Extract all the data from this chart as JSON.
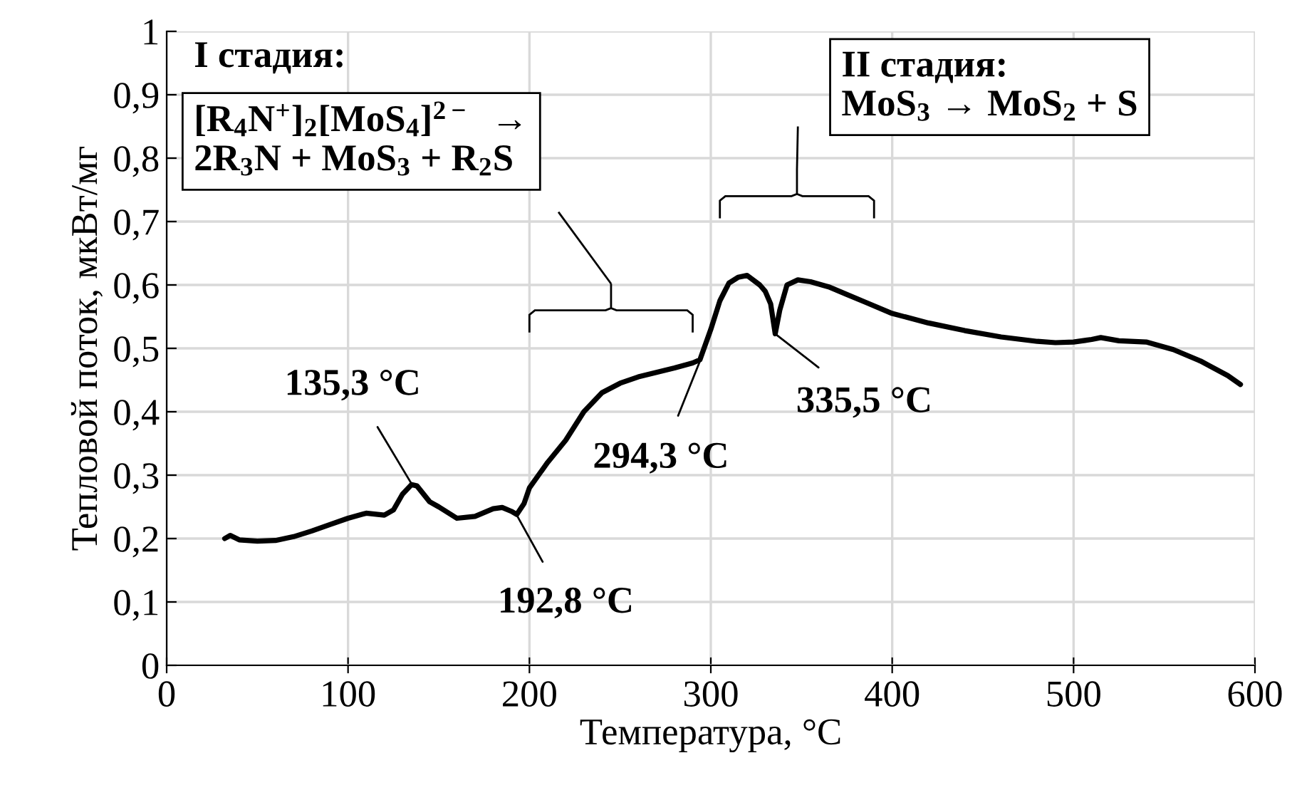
{
  "chart_data": {
    "type": "line",
    "xlabel": "Температура, °C",
    "ylabel": "Тепловой поток, мкВт/мг",
    "xlim": [
      0,
      600
    ],
    "xticks": [
      0,
      100,
      200,
      300,
      400,
      500,
      600
    ],
    "ylim": [
      0,
      1
    ],
    "yticks": [
      0,
      {
        "value": 0.1,
        "label": "0,1"
      },
      {
        "value": 0.2,
        "label": "0,2"
      },
      {
        "value": 0.3,
        "label": "0,3"
      },
      {
        "value": 0.4,
        "label": "0,4"
      },
      {
        "value": 0.5,
        "label": "0,5"
      },
      {
        "value": 0.6,
        "label": "0,6"
      },
      {
        "value": 0.7,
        "label": "0,7"
      },
      {
        "value": 0.8,
        "label": "0,8"
      },
      {
        "value": 0.9,
        "label": "0,9"
      },
      1
    ],
    "grid": true,
    "legend": false,
    "marker": "none",
    "line_style": "solid",
    "series": [
      {
        "color": "#000000",
        "x": [
          32,
          35,
          40,
          50,
          60,
          70,
          80,
          90,
          100,
          110,
          120,
          125,
          130,
          135,
          138,
          145,
          150,
          160,
          170,
          180,
          185,
          190,
          193,
          197,
          200,
          210,
          220,
          230,
          240,
          250,
          260,
          270,
          280,
          290,
          294,
          300,
          305,
          310,
          315,
          320,
          327,
          330,
          333,
          335.5,
          338,
          342,
          348,
          355,
          365,
          375,
          385,
          400,
          420,
          440,
          460,
          480,
          490,
          500,
          510,
          515,
          525,
          540,
          555,
          570,
          585,
          592
        ],
        "values": [
          0.2,
          0.205,
          0.198,
          0.196,
          0.197,
          0.203,
          0.212,
          0.222,
          0.232,
          0.24,
          0.237,
          0.245,
          0.27,
          0.285,
          0.283,
          0.258,
          0.25,
          0.232,
          0.235,
          0.247,
          0.249,
          0.243,
          0.238,
          0.255,
          0.28,
          0.32,
          0.355,
          0.4,
          0.43,
          0.445,
          0.455,
          0.462,
          0.469,
          0.477,
          0.482,
          0.53,
          0.575,
          0.603,
          0.612,
          0.615,
          0.6,
          0.59,
          0.57,
          0.523,
          0.56,
          0.6,
          0.608,
          0.605,
          0.597,
          0.585,
          0.573,
          0.555,
          0.54,
          0.528,
          0.518,
          0.511,
          0.509,
          0.51,
          0.514,
          0.517,
          0.512,
          0.51,
          0.498,
          0.48,
          0.457,
          0.443
        ]
      }
    ],
    "annotations": [
      {
        "text": "135,3 °C",
        "x": 135.3,
        "y": 0.285
      },
      {
        "text": "192,8 °C",
        "x": 192.8,
        "y": 0.238
      },
      {
        "text": "294,3 °C",
        "x": 294.3,
        "y": 0.482
      },
      {
        "text": "335,5 °C",
        "x": 335.5,
        "y": 0.523
      },
      "I стадия:",
      "[R$_{4}$N$^{+}$]$_{2}$[MoS$_{4}$]$^{2−}$  →\n2R$_{3}$N + MoS$_{3}$ + R$_{2}$S",
      "II стадия:\nMoS$_{3}$ → MoS$_{2}$ + S"
    ]
  }
}
